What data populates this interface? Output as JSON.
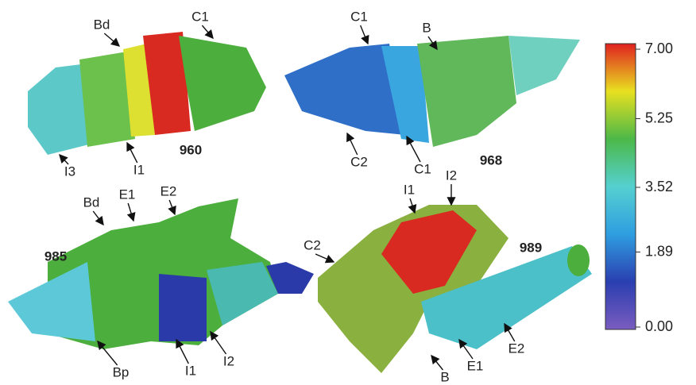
{
  "panels": [
    {
      "id": "960",
      "labels": [
        "Bd",
        "C1",
        "I1",
        "I3"
      ]
    },
    {
      "id": "968",
      "labels": [
        "C1",
        "B",
        "C2",
        "C1"
      ]
    },
    {
      "id": "985",
      "labels": [
        "Bd",
        "E1",
        "E2",
        "Bp",
        "I1",
        "I2"
      ]
    },
    {
      "id": "989",
      "labels": [
        "I1",
        "I2",
        "C2",
        "E2",
        "E1",
        "B"
      ]
    }
  ],
  "colorbar": {
    "range": [
      0,
      7
    ],
    "colors": [
      "#7a5cc0",
      "#2a3fb0",
      "#2f9ee0",
      "#55d0d0",
      "#4cb848",
      "#e8e020",
      "#e02020"
    ],
    "ticks": [
      {
        "value": 7,
        "label": "7.00"
      },
      {
        "value": 5.25,
        "label": "5.25"
      },
      {
        "value": 3.52,
        "label": "3.52"
      },
      {
        "value": 1.89,
        "label": "1.89"
      },
      {
        "value": 0,
        "label": "0.00"
      }
    ]
  }
}
